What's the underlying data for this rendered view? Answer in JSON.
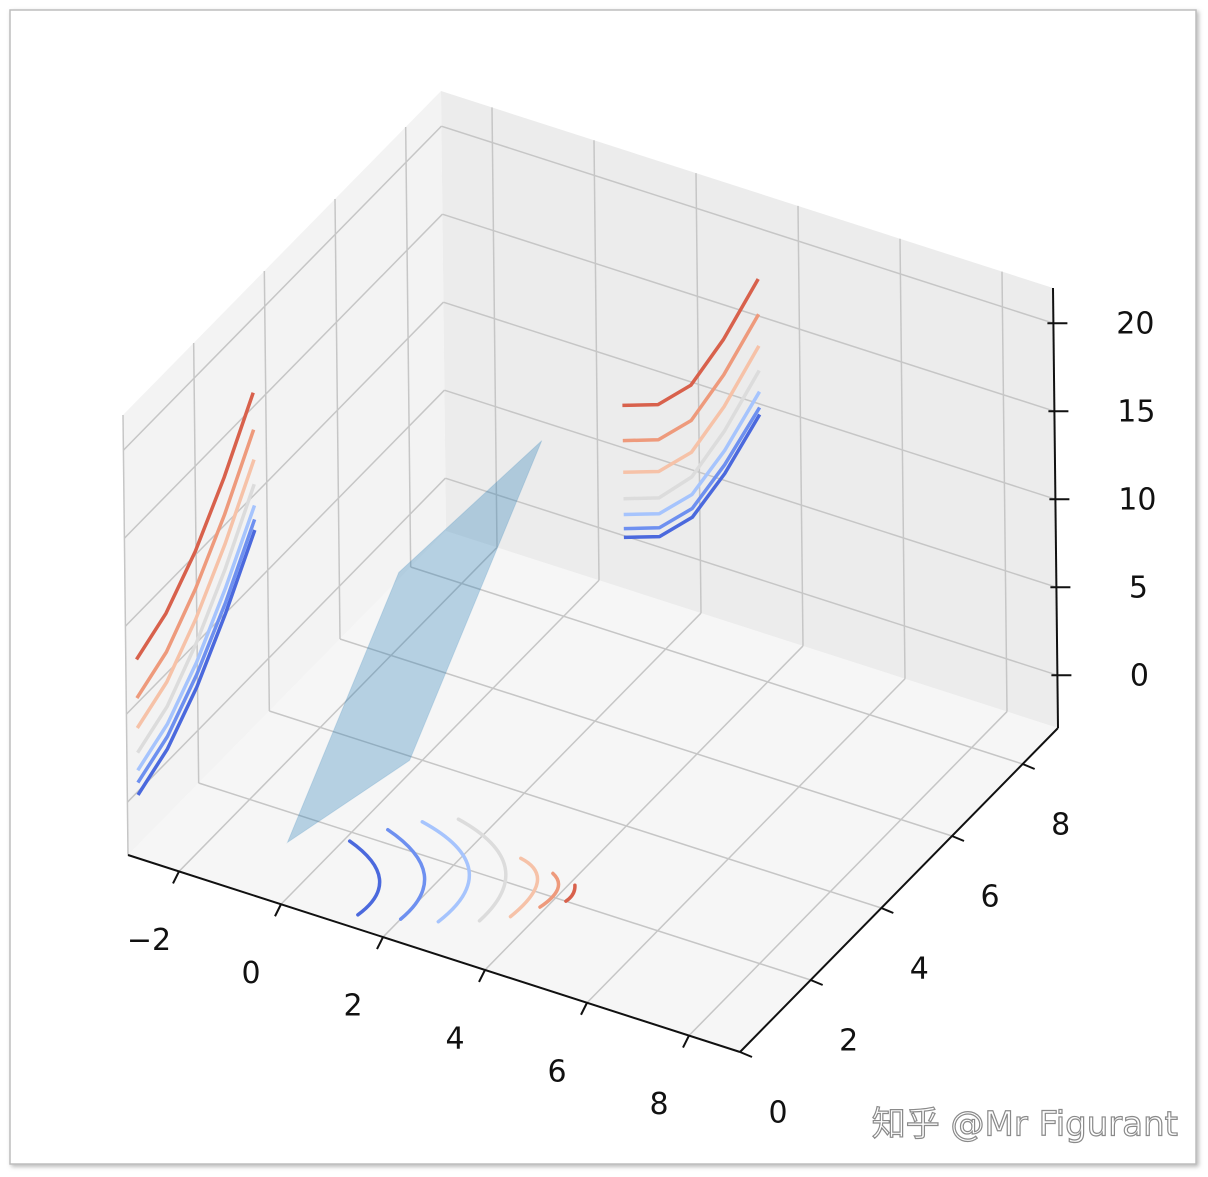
{
  "chart_data": {
    "type": "surface3d",
    "xlim": [
      -3,
      9
    ],
    "ylim": [
      0,
      9
    ],
    "zlim": [
      -3,
      22
    ],
    "xticks": [
      {
        "value": -2,
        "label": "−2"
      },
      0,
      2,
      4,
      6,
      8
    ],
    "yticks": [
      0,
      2,
      4,
      6,
      8
    ],
    "zticks": [
      0,
      5,
      10,
      15,
      20
    ],
    "grid": true,
    "surface": {
      "color": "#1f77b4",
      "x": [
        [
          0,
          2
        ],
        [
          0,
          2
        ]
      ],
      "y": [
        [
          0.2,
          0.8
        ],
        [
          3.4,
          4.6
        ]
      ],
      "z": [
        [
          0.1,
          5.4
        ],
        [
          8.9,
          15.8
        ]
      ]
    },
    "floor_contours": [
      {
        "color": "#4b69dd",
        "x": [
          0.1,
          1.1,
          1.3
        ],
        "y": [
          1.8,
          1.2,
          0.3
        ]
      },
      {
        "color": "#6e90f0",
        "x": [
          0.5,
          1.7,
          2.0
        ],
        "y": [
          2.3,
          1.6,
          0.5
        ]
      },
      {
        "color": "#a6c4fd",
        "x": [
          0.9,
          2.3,
          2.6
        ],
        "y": [
          2.7,
          2.0,
          0.7
        ]
      },
      {
        "color": "#dcdcdc",
        "x": [
          1.4,
          2.8,
          3.2
        ],
        "y": [
          3.0,
          2.3,
          1.0
        ]
      },
      {
        "color": "#f6c2a8",
        "x": [
          2.9,
          3.5,
          3.6
        ],
        "y": [
          2.6,
          2.2,
          1.3
        ]
      },
      {
        "color": "#ee9a7c",
        "x": [
          3.6,
          3.9,
          3.9
        ],
        "y": [
          2.5,
          2.2,
          1.7
        ]
      },
      {
        "color": "#d8614c",
        "x": [
          4.1,
          4.2,
          4.2
        ],
        "y": [
          2.4,
          2.2,
          2.0
        ]
      }
    ],
    "left_contours": [
      {
        "color": "#4b69dd",
        "y": [
          0.3,
          1.14,
          1.98,
          2.81,
          3.65
        ],
        "z": [
          -0.2,
          0.7,
          2.5,
          5.0,
          8.0
        ]
      },
      {
        "color": "#6e90f0",
        "y": [
          0.3,
          1.14,
          1.98,
          2.81,
          3.65
        ],
        "z": [
          0.5,
          1.4,
          3.2,
          5.6,
          8.6
        ]
      },
      {
        "color": "#a6c4fd",
        "y": [
          0.3,
          1.14,
          1.98,
          2.81,
          3.65
        ],
        "z": [
          1.2,
          2.1,
          3.9,
          6.4,
          9.4
        ]
      },
      {
        "color": "#dcdcdc",
        "y": [
          0.3,
          1.14,
          1.98,
          2.81,
          3.65
        ],
        "z": [
          2.2,
          3.1,
          5.0,
          7.5,
          10.6
        ]
      },
      {
        "color": "#f6c2a8",
        "y": [
          0.3,
          1.14,
          1.98,
          2.81,
          3.65
        ],
        "z": [
          3.6,
          4.5,
          6.4,
          8.9,
          12.0
        ]
      },
      {
        "color": "#ee9a7c",
        "y": [
          0.3,
          1.14,
          1.98,
          2.81,
          3.65
        ],
        "z": [
          5.3,
          6.2,
          8.1,
          10.6,
          13.7
        ]
      },
      {
        "color": "#d8614c",
        "y": [
          0.3,
          1.14,
          1.98,
          2.81,
          3.65
        ],
        "z": [
          7.5,
          8.4,
          10.2,
          12.7,
          15.8
        ]
      }
    ],
    "back_contours": [
      {
        "color": "#4b69dd",
        "x": [
          0.5,
          1.2,
          1.85,
          2.5,
          3.2
        ],
        "z": [
          -0.1,
          0.6,
          2.3,
          5.4,
          9.4
        ]
      },
      {
        "color": "#6e90f0",
        "x": [
          0.5,
          1.2,
          1.85,
          2.5,
          3.2
        ],
        "z": [
          0.4,
          1.1,
          2.8,
          5.9,
          9.8
        ]
      },
      {
        "color": "#a6c4fd",
        "x": [
          0.5,
          1.2,
          1.85,
          2.5,
          3.2
        ],
        "z": [
          1.2,
          1.9,
          3.6,
          6.7,
          10.7
        ]
      },
      {
        "color": "#dcdcdc",
        "x": [
          0.5,
          1.2,
          1.85,
          2.5,
          3.2
        ],
        "z": [
          2.1,
          2.8,
          4.6,
          7.8,
          11.9
        ]
      },
      {
        "color": "#f6c2a8",
        "x": [
          0.5,
          1.2,
          1.85,
          2.5,
          3.2
        ],
        "z": [
          3.6,
          4.3,
          6.0,
          9.2,
          13.3
        ]
      },
      {
        "color": "#ee9a7c",
        "x": [
          0.5,
          1.2,
          1.85,
          2.5,
          3.2
        ],
        "z": [
          5.4,
          6.1,
          7.8,
          11.0,
          15.1
        ]
      },
      {
        "color": "#d8614c",
        "x": [
          0.5,
          1.2,
          1.85,
          2.5,
          3.2
        ],
        "z": [
          7.4,
          8.1,
          9.8,
          13.0,
          17.1
        ]
      }
    ],
    "watermark": "知乎 @Mr Figurant"
  }
}
